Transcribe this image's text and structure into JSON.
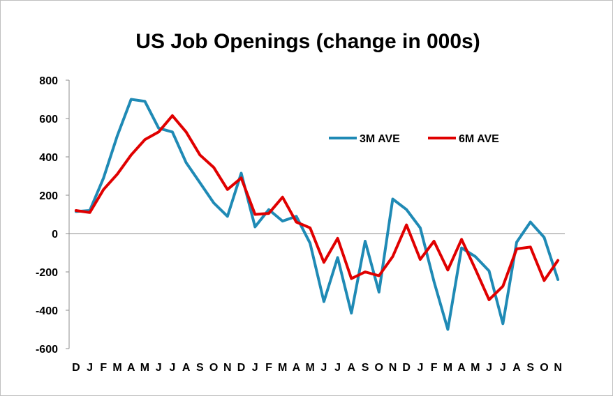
{
  "chart_data": {
    "type": "line",
    "title": "US Job Openings (change in 000s)",
    "xlabel": "",
    "ylabel": "",
    "ylim": [
      -600,
      800
    ],
    "yticks": [
      800,
      600,
      400,
      200,
      0,
      -200,
      -400,
      -600
    ],
    "grid": false,
    "legend_placement": "top-right",
    "categories": [
      "D",
      "J",
      "F",
      "M",
      "A",
      "M",
      "J",
      "J",
      "A",
      "S",
      "O",
      "N",
      "D",
      "J",
      "F",
      "M",
      "A",
      "M",
      "J",
      "J",
      "A",
      "S",
      "O",
      "N",
      "D",
      "J",
      "F",
      "M",
      "A",
      "M",
      "J",
      "J",
      "A",
      "S",
      "O",
      "N"
    ],
    "series": [
      {
        "name": "3M AVE",
        "color": "#1f8ab5",
        "values": [
          115,
          120,
          290,
          510,
          700,
          690,
          550,
          530,
          370,
          265,
          160,
          90,
          315,
          35,
          125,
          65,
          90,
          -50,
          -355,
          -125,
          -415,
          -40,
          -305,
          180,
          125,
          30,
          -250,
          -500,
          -75,
          -120,
          -195,
          -470,
          -45,
          60,
          -20,
          -240
        ]
      },
      {
        "name": "6M AVE",
        "color": "#e00000",
        "values": [
          120,
          110,
          230,
          310,
          410,
          490,
          530,
          615,
          530,
          410,
          345,
          230,
          290,
          100,
          105,
          190,
          60,
          30,
          -150,
          -25,
          -235,
          -200,
          -220,
          -120,
          45,
          -135,
          -40,
          -190,
          -30,
          -185,
          -345,
          -275,
          -80,
          -70,
          -245,
          -140
        ]
      }
    ]
  }
}
